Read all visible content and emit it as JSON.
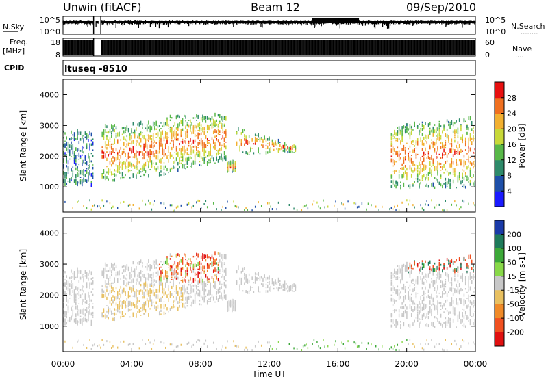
{
  "header": {
    "station": "Unwin (fitACF)",
    "beam": "Beam 12",
    "date": "09/Sep/2010"
  },
  "noise_panel": {
    "left_label": "N.Sky",
    "right_label": "N.Search",
    "right_dots": "........",
    "left_ticks": [
      "10^5",
      "10^0"
    ],
    "right_ticks": [
      "10^5",
      "10^0"
    ]
  },
  "freq_panel": {
    "left_label_1": "Freq.",
    "left_label_2": "[MHz]",
    "right_label": "Nave",
    "right_dots": "....",
    "left_ticks": [
      "18",
      "8"
    ],
    "right_ticks": [
      "60",
      "0"
    ]
  },
  "cpid": {
    "label": "CPID",
    "value": "ltuseq -8510"
  },
  "chart_data": [
    {
      "type": "heatmap",
      "name": "power",
      "ylabel": "Slant Range [km]",
      "ylim": [
        180,
        4500
      ],
      "yticks": [
        "1000",
        "2000",
        "3000",
        "4000"
      ],
      "colorbar": {
        "label": "Power [dB]",
        "ticks": [
          "4",
          "8",
          "12",
          "16",
          "20",
          "24",
          "28"
        ],
        "colors": [
          "#1a1aff",
          "#1e4fa8",
          "#2e8a6a",
          "#58b848",
          "#c8d838",
          "#f2b030",
          "#f07020",
          "#e81010"
        ],
        "range": [
          0,
          32
        ]
      }
    },
    {
      "type": "heatmap",
      "name": "velocity",
      "ylabel": "Slant Range [km]",
      "ylim": [
        180,
        4500
      ],
      "yticks": [
        "1000",
        "2000",
        "3000",
        "4000"
      ],
      "colorbar": {
        "label": "Velocity [m s-1]",
        "ticks": [
          "200",
          "100",
          "50",
          "15",
          "-15",
          "-50",
          "-100",
          "-200"
        ],
        "colors": [
          "#1a3aa8",
          "#1e7a5a",
          "#3ca838",
          "#88d848",
          "#c8c8c8",
          "#e8c060",
          "#f08a28",
          "#f05020",
          "#e01010"
        ]
      }
    }
  ],
  "x_axis": {
    "label": "Time UT",
    "ticks": [
      "00:00",
      "04:00",
      "08:00",
      "12:00",
      "16:00",
      "20:00",
      "00:00"
    ]
  }
}
